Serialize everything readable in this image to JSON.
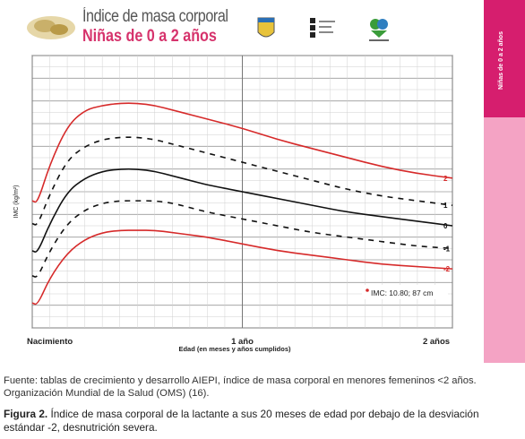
{
  "header": {
    "title_line1": "Índice de masa corporal",
    "title_line2": "Niñas de 0 a 2 años",
    "sidebar_label": "Niñas de 0 a 2 años"
  },
  "colors": {
    "accent": "#d61e6e",
    "accent_light": "#f4a3c4",
    "red_curve": "#d62a2a",
    "black_curve": "#111111"
  },
  "chart_data": {
    "type": "line",
    "ylabel": "IMC (kg/m²)",
    "xlabel": "Edad (en meses y años cumplidos)",
    "x_tick_labels": [
      {
        "x": 0,
        "label": "Nacimiento"
      },
      {
        "x": 12,
        "label": "1 año"
      },
      {
        "x": 24,
        "label": "2 años"
      }
    ],
    "xlim": [
      0,
      24
    ],
    "ylim": [
      10,
      22
    ],
    "grid": true,
    "annotation": "IMC: 10.80; 87 cm",
    "series": [
      {
        "name": "2",
        "color": "#d62a2a",
        "style": "solid",
        "x": [
          0,
          0.3,
          1,
          2,
          3,
          4,
          5,
          6,
          7,
          8,
          9,
          10,
          12,
          14,
          16,
          18,
          20,
          22,
          24
        ],
        "y": [
          15.6,
          15.5,
          17.2,
          18.9,
          19.6,
          19.8,
          19.9,
          19.9,
          19.8,
          19.6,
          19.4,
          19.2,
          18.8,
          18.3,
          17.9,
          17.5,
          17.1,
          16.8,
          16.6
        ]
      },
      {
        "name": "1",
        "color": "#111111",
        "style": "dashed",
        "x": [
          0,
          0.3,
          1,
          2,
          3,
          4,
          5,
          6,
          7,
          8,
          9,
          10,
          12,
          14,
          16,
          18,
          20,
          22,
          24
        ],
        "y": [
          14.6,
          14.5,
          15.9,
          17.4,
          18.0,
          18.3,
          18.4,
          18.4,
          18.3,
          18.1,
          17.9,
          17.7,
          17.3,
          16.9,
          16.5,
          16.1,
          15.8,
          15.6,
          15.4
        ]
      },
      {
        "name": "0",
        "color": "#111111",
        "style": "solid",
        "x": [
          0,
          0.3,
          1,
          2,
          3,
          4,
          5,
          6,
          7,
          8,
          9,
          10,
          12,
          14,
          16,
          18,
          20,
          22,
          24
        ],
        "y": [
          13.4,
          13.3,
          14.6,
          16.0,
          16.6,
          16.9,
          17.0,
          17.0,
          16.9,
          16.7,
          16.5,
          16.3,
          16.0,
          15.7,
          15.4,
          15.1,
          14.9,
          14.7,
          14.5
        ]
      },
      {
        "name": "-1",
        "color": "#111111",
        "style": "dashed",
        "x": [
          0,
          0.3,
          1,
          2,
          3,
          4,
          5,
          6,
          7,
          8,
          9,
          10,
          12,
          14,
          16,
          18,
          20,
          22,
          24
        ],
        "y": [
          12.3,
          12.2,
          13.4,
          14.6,
          15.2,
          15.5,
          15.6,
          15.6,
          15.6,
          15.5,
          15.3,
          15.1,
          14.8,
          14.5,
          14.2,
          14.0,
          13.8,
          13.6,
          13.5
        ]
      },
      {
        "name": "-2",
        "color": "#d62a2a",
        "style": "solid",
        "x": [
          0,
          0.3,
          1,
          2,
          3,
          4,
          5,
          6,
          7,
          8,
          9,
          10,
          12,
          14,
          16,
          18,
          20,
          22,
          24
        ],
        "y": [
          11.1,
          11.0,
          12.2,
          13.3,
          13.9,
          14.2,
          14.3,
          14.3,
          14.3,
          14.2,
          14.1,
          14.0,
          13.7,
          13.4,
          13.2,
          13.0,
          12.8,
          12.7,
          12.6
        ]
      }
    ]
  },
  "captions": {
    "fuente": "Fuente: tablas de crecimiento y desarrollo AIEPI, índice de masa corporal en menores femeninos <2 años. Organización Mundial de la Salud (OMS) (16).",
    "figura_label": "Figura 2.",
    "figura_text": " Índice de masa corporal de la lactante a sus 20 meses de edad por debajo de la desviación estándar -2, desnutrición severa."
  }
}
